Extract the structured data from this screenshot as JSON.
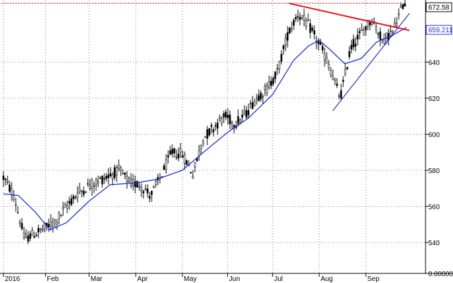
{
  "chart_data": {
    "type": "candlestick",
    "title": "",
    "xlabel": "",
    "ylabel": "",
    "ylim": [
      525,
      677
    ],
    "x_range": [
      "2016-01-04",
      "2016-09-27"
    ],
    "grid": true,
    "x_ticks": [
      {
        "label": "2016",
        "date": "2016-01-04"
      },
      {
        "label": "Feb",
        "date": "2016-02-01"
      },
      {
        "label": "Mar",
        "date": "2016-03-01"
      },
      {
        "label": "Apr",
        "date": "2016-04-01"
      },
      {
        "label": "May",
        "date": "2016-05-02"
      },
      {
        "label": "Jun",
        "date": "2016-06-01"
      },
      {
        "label": "Jul",
        "date": "2016-07-01"
      },
      {
        "label": "Aug",
        "date": "2016-08-01"
      },
      {
        "label": "Sep",
        "date": "2016-09-01"
      }
    ],
    "y_ticks": [
      540,
      560,
      580,
      600,
      620,
      640
    ],
    "y_zero_label": "0.00000",
    "price_label": "672.58",
    "ma_label": "659.211",
    "series": [
      {
        "kind": "price",
        "points": [
          {
            "date": "2016-01-04",
            "value": 576
          },
          {
            "date": "2016-01-11",
            "value": 566
          },
          {
            "date": "2016-01-18",
            "value": 542
          },
          {
            "date": "2016-01-25",
            "value": 545
          },
          {
            "date": "2016-02-01",
            "value": 548
          },
          {
            "date": "2016-02-08",
            "value": 552
          },
          {
            "date": "2016-02-15",
            "value": 560
          },
          {
            "date": "2016-02-22",
            "value": 567
          },
          {
            "date": "2016-02-29",
            "value": 571
          },
          {
            "date": "2016-03-07",
            "value": 574
          },
          {
            "date": "2016-03-14",
            "value": 577
          },
          {
            "date": "2016-03-21",
            "value": 580
          },
          {
            "date": "2016-03-28",
            "value": 573
          },
          {
            "date": "2016-04-04",
            "value": 572
          },
          {
            "date": "2016-04-11",
            "value": 566
          },
          {
            "date": "2016-04-18",
            "value": 577
          },
          {
            "date": "2016-04-25",
            "value": 590
          },
          {
            "date": "2016-05-02",
            "value": 589
          },
          {
            "date": "2016-05-09",
            "value": 578
          },
          {
            "date": "2016-05-16",
            "value": 598
          },
          {
            "date": "2016-05-23",
            "value": 604
          },
          {
            "date": "2016-05-30",
            "value": 610
          },
          {
            "date": "2016-06-06",
            "value": 606
          },
          {
            "date": "2016-06-13",
            "value": 611
          },
          {
            "date": "2016-06-20",
            "value": 620
          },
          {
            "date": "2016-06-27",
            "value": 625
          },
          {
            "date": "2016-07-04",
            "value": 634
          },
          {
            "date": "2016-07-11",
            "value": 655
          },
          {
            "date": "2016-07-18",
            "value": 667
          },
          {
            "date": "2016-07-25",
            "value": 660
          },
          {
            "date": "2016-08-01",
            "value": 650
          },
          {
            "date": "2016-08-08",
            "value": 637
          },
          {
            "date": "2016-08-15",
            "value": 620
          },
          {
            "date": "2016-08-22",
            "value": 648
          },
          {
            "date": "2016-08-29",
            "value": 656
          },
          {
            "date": "2016-09-05",
            "value": 664
          },
          {
            "date": "2016-09-12",
            "value": 652
          },
          {
            "date": "2016-09-19",
            "value": 657
          },
          {
            "date": "2016-09-26",
            "value": 672.58
          }
        ]
      },
      {
        "kind": "moving-average",
        "points": [
          {
            "date": "2016-01-04",
            "value": 567
          },
          {
            "date": "2016-01-14",
            "value": 566
          },
          {
            "date": "2016-01-25",
            "value": 557
          },
          {
            "date": "2016-02-04",
            "value": 547
          },
          {
            "date": "2016-02-15",
            "value": 551
          },
          {
            "date": "2016-03-01",
            "value": 563
          },
          {
            "date": "2016-03-15",
            "value": 572
          },
          {
            "date": "2016-04-01",
            "value": 573
          },
          {
            "date": "2016-04-15",
            "value": 575
          },
          {
            "date": "2016-05-02",
            "value": 580
          },
          {
            "date": "2016-05-16",
            "value": 590
          },
          {
            "date": "2016-06-01",
            "value": 601
          },
          {
            "date": "2016-06-15",
            "value": 609
          },
          {
            "date": "2016-07-01",
            "value": 622
          },
          {
            "date": "2016-07-15",
            "value": 641
          },
          {
            "date": "2016-07-25",
            "value": 649
          },
          {
            "date": "2016-08-01",
            "value": 652
          },
          {
            "date": "2016-08-08",
            "value": 647
          },
          {
            "date": "2016-08-18",
            "value": 639
          },
          {
            "date": "2016-08-29",
            "value": 642
          },
          {
            "date": "2016-09-08",
            "value": 651
          },
          {
            "date": "2016-09-19",
            "value": 655
          },
          {
            "date": "2016-09-28",
            "value": 659.211
          }
        ]
      }
    ],
    "trendlines": [
      {
        "style": "resistance",
        "color": "#e8101a",
        "from": {
          "date": "2016-07-12",
          "value": 672.5
        },
        "to": {
          "date": "2016-09-30",
          "value": 657.5
        }
      },
      {
        "style": "support",
        "color": "#2b2bd6",
        "from": {
          "date": "2016-08-10",
          "value": 613
        },
        "to": {
          "date": "2016-09-30",
          "value": 667
        }
      },
      {
        "style": "dotted-level",
        "color": "#e8101a",
        "from": {
          "date": "2016-01-01",
          "value": 672.58
        },
        "to": {
          "date": "2016-09-27",
          "value": 672.58
        }
      }
    ]
  },
  "colors": {
    "price_candles": "#000000",
    "moving_average": "#1f2ee0",
    "resistance": "#e8101a",
    "support": "#2b2bd6",
    "grid": "#7f7f7f",
    "label_box_price": "#000000",
    "label_box_ma": "#1f2ee0"
  }
}
